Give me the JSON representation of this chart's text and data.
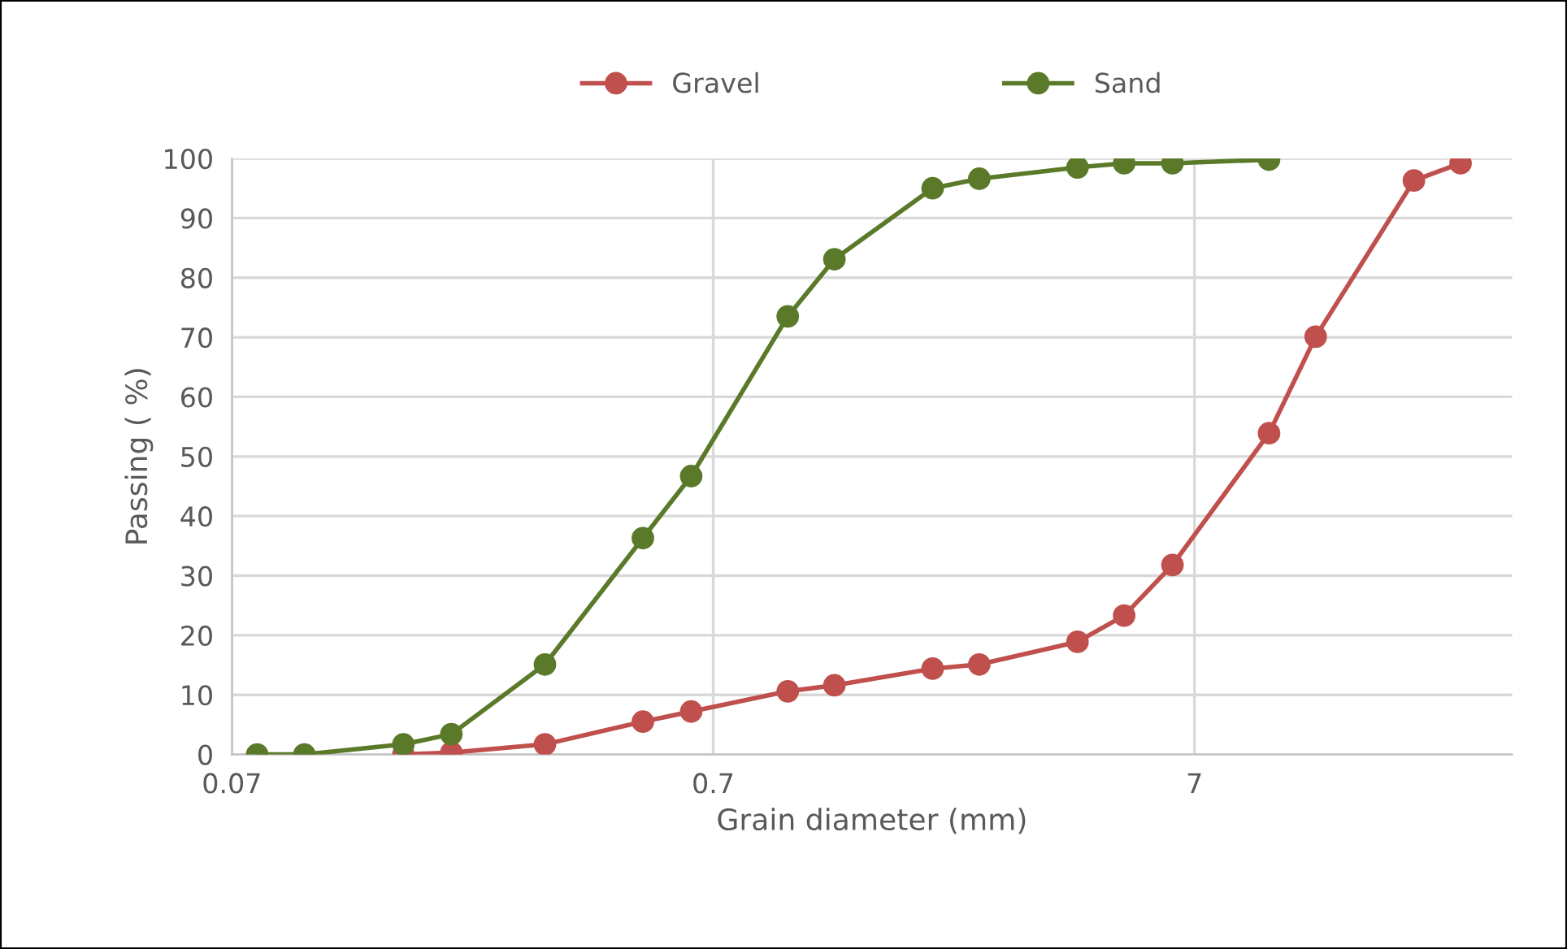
{
  "chart_data": {
    "type": "line",
    "xlabel": "Grain diameter (mm)",
    "ylabel": "Passing ( %)",
    "log": "x",
    "xlim": [
      0.07,
      32
    ],
    "xticks": [
      0.07,
      0.7,
      7
    ],
    "ylim": [
      0,
      100
    ],
    "yticks": [
      0,
      10,
      20,
      30,
      40,
      50,
      60,
      70,
      80,
      90,
      100
    ],
    "grid": true,
    "legend": "top",
    "marker": "circle",
    "line_style": "solid",
    "series": [
      {
        "name": "Gravel",
        "color": "#c0504d",
        "x": [
          0.159,
          0.2,
          0.313,
          0.5,
          0.63,
          1.0,
          1.25,
          2.0,
          2.5,
          4.0,
          5.0,
          6.3,
          10,
          12.5,
          20,
          25
        ],
        "values": [
          0,
          0.3,
          1.7,
          5.5,
          7.2,
          10.6,
          11.6,
          14.4,
          15.1,
          18.9,
          23.3,
          31.8,
          53.9,
          70.1,
          96.3,
          99.2
        ]
      },
      {
        "name": "Sand",
        "color": "#5a7a2a",
        "x": [
          0.079,
          0.099,
          0.159,
          0.2,
          0.313,
          0.5,
          0.63,
          1.0,
          1.25,
          2.0,
          2.5,
          4.0,
          5.0,
          6.3,
          10
        ],
        "values": [
          0,
          0,
          1.7,
          3.4,
          15.1,
          36.3,
          46.7,
          73.5,
          83.1,
          95,
          96.6,
          98.5,
          99.2,
          99.2,
          99.8
        ]
      }
    ]
  }
}
